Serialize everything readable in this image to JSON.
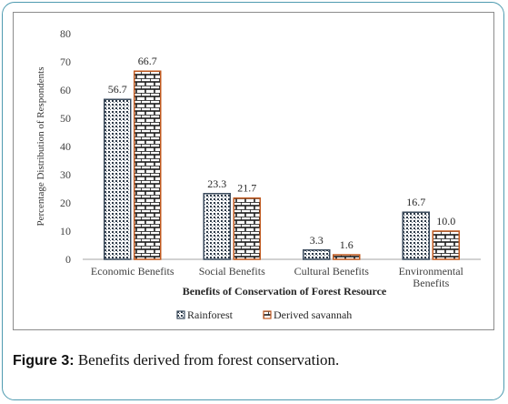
{
  "chart_data": {
    "type": "bar",
    "xlabel": "Benefits  of Conservation  of Forest Resource",
    "ylabel": "Percentage Distribution of Respondents",
    "ylim": [
      0,
      80
    ],
    "yticks": [
      0,
      10,
      20,
      30,
      40,
      50,
      60,
      70,
      80
    ],
    "categories": [
      [
        "Economic Benefits"
      ],
      [
        "Social Benefits"
      ],
      [
        "Cultural Benefits"
      ],
      [
        "Environmental",
        "Benefits"
      ]
    ],
    "series": [
      {
        "name": "Rainforest",
        "values": [
          56.7,
          23.3,
          3.3,
          16.7
        ],
        "labels": [
          "56.7",
          "23.3",
          "3.3",
          "16.7"
        ],
        "pattern": "dots",
        "color": "#3a4a5c"
      },
      {
        "name": "Derived savannah",
        "values": [
          66.7,
          21.7,
          1.6,
          10.0
        ],
        "labels": [
          "66.7",
          "21.7",
          "1.6",
          "10.0"
        ],
        "pattern": "bricks",
        "color": "#c0581e"
      }
    ],
    "grid": false,
    "legend": "bottom"
  },
  "caption": {
    "label": "Figure 3:",
    "text": " Benefits derived from forest conservation."
  }
}
